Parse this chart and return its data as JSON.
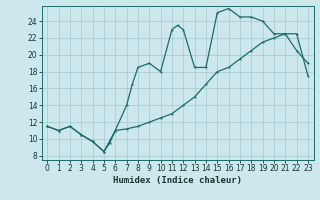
{
  "xlabel": "Humidex (Indice chaleur)",
  "bg_color": "#cce8ec",
  "grid_color": "#aacdd4",
  "line_color": "#1a6b6b",
  "xlim": [
    -0.5,
    23.5
  ],
  "ylim": [
    7.5,
    25.8
  ],
  "xticks": [
    0,
    1,
    2,
    3,
    4,
    5,
    6,
    7,
    8,
    9,
    10,
    11,
    12,
    13,
    14,
    15,
    16,
    17,
    18,
    19,
    20,
    21,
    22,
    23
  ],
  "yticks": [
    8,
    10,
    12,
    14,
    16,
    18,
    20,
    22,
    24
  ],
  "line1_x": [
    0,
    1,
    2,
    3,
    4,
    5,
    5.5,
    6,
    7,
    7.5,
    8,
    9,
    10,
    11,
    11.5,
    12,
    13,
    14,
    15,
    16,
    17,
    18,
    19,
    20,
    21,
    22,
    23
  ],
  "line1_y": [
    11.5,
    11.0,
    11.5,
    10.5,
    9.7,
    8.5,
    9.5,
    11.0,
    14.0,
    16.5,
    18.5,
    19.0,
    18.0,
    23.0,
    23.5,
    23.0,
    18.5,
    18.5,
    25.0,
    25.5,
    24.5,
    24.5,
    24.0,
    22.5,
    22.5,
    20.5,
    19.0
  ],
  "line2_x": [
    0,
    1,
    2,
    3,
    4,
    5,
    6,
    7,
    8,
    9,
    10,
    11,
    12,
    13,
    14,
    15,
    16,
    17,
    18,
    19,
    20,
    21,
    22,
    23
  ],
  "line2_y": [
    11.5,
    11.0,
    11.5,
    10.5,
    9.7,
    8.5,
    11.0,
    11.2,
    11.5,
    12.0,
    12.5,
    13.0,
    14.0,
    15.0,
    16.5,
    18.0,
    18.5,
    19.5,
    20.5,
    21.5,
    22.0,
    22.5,
    22.5,
    17.5
  ],
  "xlabel_fontsize": 6.5,
  "tick_fontsize": 5.5,
  "linewidth": 0.9,
  "marker_size": 2.5
}
